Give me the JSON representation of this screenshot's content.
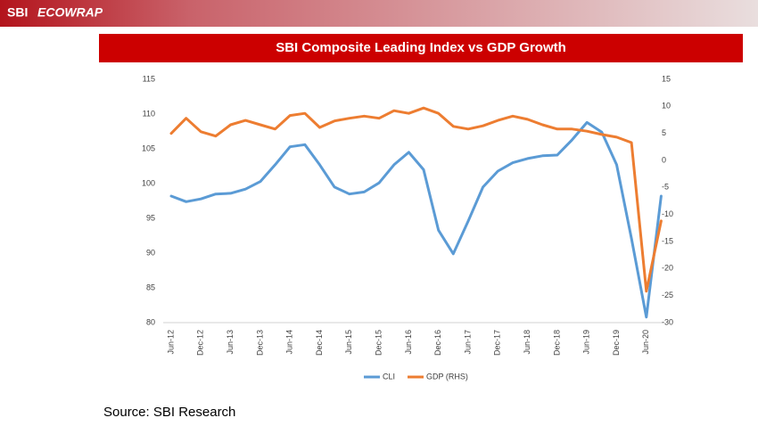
{
  "header": {
    "brand": "SBI",
    "product": "ECOWRAP"
  },
  "chart_data": {
    "type": "line",
    "title": "SBI Composite Leading Index vs GDP Growth",
    "categories": [
      "Jun-12",
      null,
      "Dec-12",
      null,
      "Jun-13",
      null,
      "Dec-13",
      null,
      "Jun-14",
      null,
      "Dec-14",
      null,
      "Jun-15",
      null,
      "Dec-15",
      null,
      "Jun-16",
      null,
      "Dec-16",
      null,
      "Jun-17",
      null,
      "Dec-17",
      null,
      "Jun-18",
      null,
      "Dec-18",
      null,
      "Jun-19",
      null,
      "Dec-19",
      null,
      "Jun-20",
      null
    ],
    "series": [
      {
        "name": "CLI",
        "color": "#5b9bd5",
        "values": [
          98.2,
          97.4,
          97.8,
          98.5,
          98.6,
          99.2,
          100.3,
          102.7,
          105.3,
          105.6,
          102.7,
          99.5,
          98.5,
          98.8,
          100.1,
          102.7,
          104.5,
          102,
          93.3,
          89.9,
          94.6,
          99.5,
          101.8,
          103,
          103.6,
          104,
          104.1,
          106.3,
          108.8,
          107.4,
          102.7,
          92.1,
          80.8,
          98.2
        ]
      },
      {
        "name": "GDP (RHS)",
        "color": "#ed7d31",
        "axis": "y2",
        "values": [
          5,
          7.8,
          5.3,
          4.5,
          6.6,
          7.4,
          6.6,
          5.8,
          8.3,
          8.7,
          6.1,
          7.3,
          7.8,
          8.2,
          7.8,
          9.2,
          8.7,
          9.7,
          8.7,
          6.3,
          5.8,
          6.4,
          7.4,
          8.2,
          7.6,
          6.6,
          5.8,
          5.8,
          5.4,
          4.8,
          4.3,
          3.3,
          -24.2,
          -11.2
        ]
      }
    ],
    "ylim": [
      80,
      115
    ],
    "yticks": [
      80,
      85,
      90,
      95,
      100,
      105,
      110,
      115
    ],
    "y2lim": [
      -30,
      15
    ],
    "y2ticks": [
      -30,
      -25,
      -20,
      -15,
      -10,
      -5,
      0,
      5,
      10,
      15
    ],
    "grid": false,
    "source": "Source: SBI Research"
  }
}
